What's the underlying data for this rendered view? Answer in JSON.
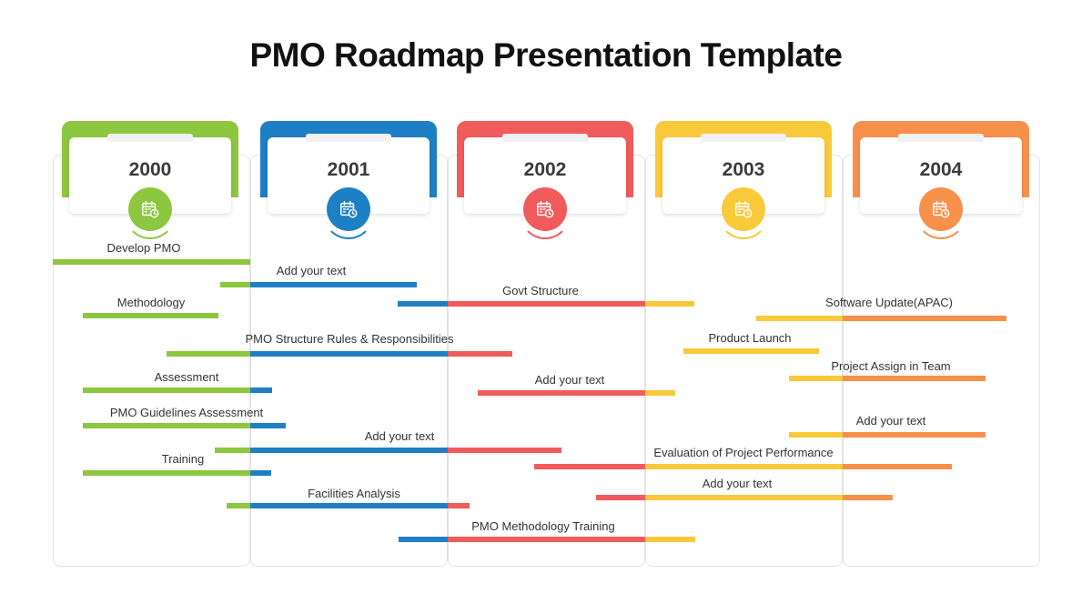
{
  "title": "PMO Roadmap Presentation Template",
  "colors": {
    "green": "#8dc63f",
    "blue": "#1f7fc4",
    "red": "#f15b5b",
    "yellow": "#f9c93a",
    "orange": "#f7904a"
  },
  "years": [
    {
      "label": "2000",
      "color": "green",
      "icon": "calendar-clock-icon"
    },
    {
      "label": "2001",
      "color": "blue",
      "icon": "calendar-clock-icon"
    },
    {
      "label": "2002",
      "color": "red",
      "icon": "calendar-clock-icon"
    },
    {
      "label": "2003",
      "color": "yellow",
      "icon": "calendar-clock-icon"
    },
    {
      "label": "2004",
      "color": "orange",
      "icon": "calendar-clock-icon"
    }
  ],
  "tasks": [
    {
      "label": "Develop PMO"
    },
    {
      "label": "Add your text"
    },
    {
      "label": "Methodology"
    },
    {
      "label": "Govt Structure"
    },
    {
      "label": "Software Update(APAC)"
    },
    {
      "label": "PMO Structure  Rules & Responsibilities"
    },
    {
      "label": "Product  Launch"
    },
    {
      "label": "Project Assign in Team"
    },
    {
      "label": "Assessment"
    },
    {
      "label": "Add your text"
    },
    {
      "label": "PMO Guidelines Assessment"
    },
    {
      "label": "Add your text"
    },
    {
      "label": "Add your text"
    },
    {
      "label": "Evaluation of Project Performance"
    },
    {
      "label": "Training"
    },
    {
      "label": "Add your text"
    },
    {
      "label": "Facilities Analysis"
    },
    {
      "label": "PMO Methodology  Training"
    }
  ]
}
